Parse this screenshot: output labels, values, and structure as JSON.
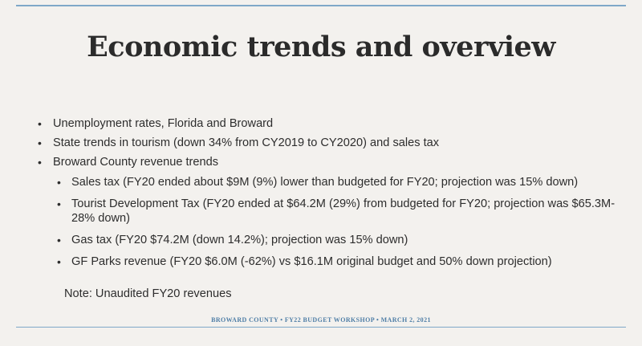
{
  "slide": {
    "title": "Economic trends and overview",
    "bullets": [
      "Unemployment rates, Florida and Broward",
      "State trends in tourism (down 34% from CY2019 to CY2020) and sales tax",
      "Broward County revenue trends"
    ],
    "sub_bullets": [
      "Sales tax (FY20 ended about $9M (9%) lower than budgeted for FY20; projection was 15% down)",
      "Tourist Development Tax (FY20 ended at $64.2M (29%) from budgeted for FY20; projection was $65.3M-28% down)",
      "Gas tax (FY20 $74.2M (down 14.2%); projection was 15% down)",
      "GF Parks revenue (FY20 $6.0M (-62%) vs $16.1M original budget and 50% down projection)"
    ],
    "note": "Note: Unaudited FY20 revenues",
    "footer": "BROWARD COUNTY • FY22 BUDGET WORKSHOP • MARCH 2, 2021",
    "bullet_glyph": "•"
  },
  "colors": {
    "background": "#f3f1ee",
    "rule": "#7fa8c8",
    "footer_text": "#4f7ea6",
    "body_text": "#2d2d2d"
  }
}
